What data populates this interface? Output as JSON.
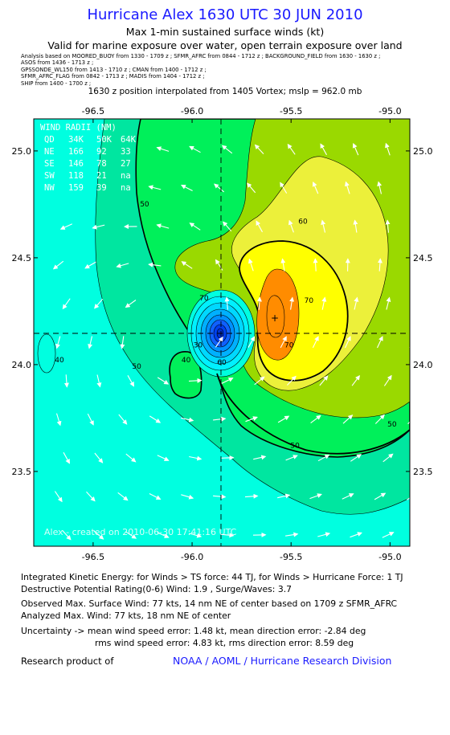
{
  "header": {
    "title": "Hurricane Alex 1630 UTC 30 JUN 2010",
    "subtitle": "Max 1-min sustained surface winds (kt)",
    "valid": "Valid for marine exposure over water, open terrain exposure over land",
    "analysis_lines": [
      "Analysis based on  MOORED_BUOY from 1330 - 1709 z ;  SFMR_AFRC from 0844 - 1712 z ;  BACKGROUND_FIELD from 1630 - 1630 z ;",
      "ASOS from 1436 - 1713 z ;",
      "GPSSONDE_WL150 from 1413 - 1710 z ;  CMAN from 1400 - 1712 z ;",
      "SFMR_AFRC_FLAG from 0842 - 1713 z ;  MADIS from 1404 - 1712 z ;",
      "SHIP from 1400 - 1700 z ;"
    ],
    "center_note": "1630 z position interpolated from 1405 Vortex; mslp = 962.0 mb"
  },
  "chart_data": {
    "type": "heatmap",
    "title": "Hurricane Alex 1630 UTC 30 JUN 2010",
    "subtitle": "Max 1-min sustained surface winds (kt)",
    "xlim": [
      -96.8,
      -94.9
    ],
    "ylim": [
      23.15,
      25.15
    ],
    "x_ticks": [
      -96.5,
      -96.0,
      -95.5,
      -95.0
    ],
    "x_tick_labels": [
      "-96.5",
      "-96.0",
      "-95.5",
      "-95.0"
    ],
    "y_ticks": [
      23.5,
      24.0,
      24.5,
      25.0
    ],
    "y_tick_labels": [
      "23.5",
      "24.0",
      "24.5",
      "25.0"
    ],
    "center": {
      "lon": -96.1,
      "lat": 24.16
    },
    "max_wind_marker": {
      "lon": -95.4,
      "lat": 24.23
    },
    "contour_labels": [
      {
        "text": "50",
        "lon": -96.24,
        "lat": 24.74
      },
      {
        "text": "60",
        "lon": -95.44,
        "lat": 24.66
      },
      {
        "text": "50",
        "lon": -95.48,
        "lat": 23.61
      },
      {
        "text": "50",
        "lon": -94.99,
        "lat": 23.71
      },
      {
        "text": "60",
        "lon": -95.85,
        "lat": 24.0
      },
      {
        "text": "70",
        "lon": -95.94,
        "lat": 24.3
      },
      {
        "text": "70",
        "lon": -95.41,
        "lat": 24.29
      },
      {
        "text": "70",
        "lon": -95.51,
        "lat": 24.08
      },
      {
        "text": "50",
        "lon": -96.28,
        "lat": 23.98
      },
      {
        "text": "40",
        "lon": -96.67,
        "lat": 24.01
      },
      {
        "text": "30",
        "lon": -95.97,
        "lat": 24.08
      },
      {
        "text": "40",
        "lon": -96.03,
        "lat": 24.01
      }
    ],
    "wind_radii": {
      "header": "WIND RADII (NM)",
      "columns": [
        "QD",
        "34K",
        "50K",
        "64K"
      ],
      "rows": [
        [
          "NE",
          "166",
          "92",
          "33"
        ],
        [
          "SE",
          "146",
          "78",
          "27"
        ],
        [
          "SW",
          "118",
          "21",
          "na"
        ],
        [
          "NW",
          "159",
          "39",
          "na"
        ]
      ]
    },
    "watermark": "Alex - created on 2010-06-30 17:41:16 UTC",
    "colors": {
      "lt40": "#00ffe0",
      "40_50": "#00e6a0",
      "50_60": "#00f05a",
      "60_64": "#9ad900",
      "64_70": "#ecf03a",
      "70_80": "#ffff00",
      "gt80": "#ff8c00",
      "eye_core": "#1060ff",
      "title_blue": "#1a1aff"
    }
  },
  "stats": {
    "ike": "Integrated Kinetic Energy:  for Winds > TS force: 44 TJ,  for Winds > Hurricane Force: 1 TJ",
    "dpr": "Destructive Potential Rating(0-6)   Wind: 1.9 , Surge/Waves: 3.7",
    "observed": "Observed Max. Surface Wind: 77 kts, 14 nm NE of center based on 1709 z SFMR_AFRC",
    "analyzed": "Analyzed Max. Wind: 77 kts, 18 nm NE of center",
    "uncertainty1": "Uncertainty -> mean wind speed error: 1.48 kt,   mean direction error:  -2.84 deg",
    "uncertainty2": "rms wind speed error: 4.83 kt,   rms direction error: 8.59 deg"
  },
  "footer": {
    "research": "Research product of",
    "org": "NOAA / AOML / Hurricane Research Division"
  }
}
